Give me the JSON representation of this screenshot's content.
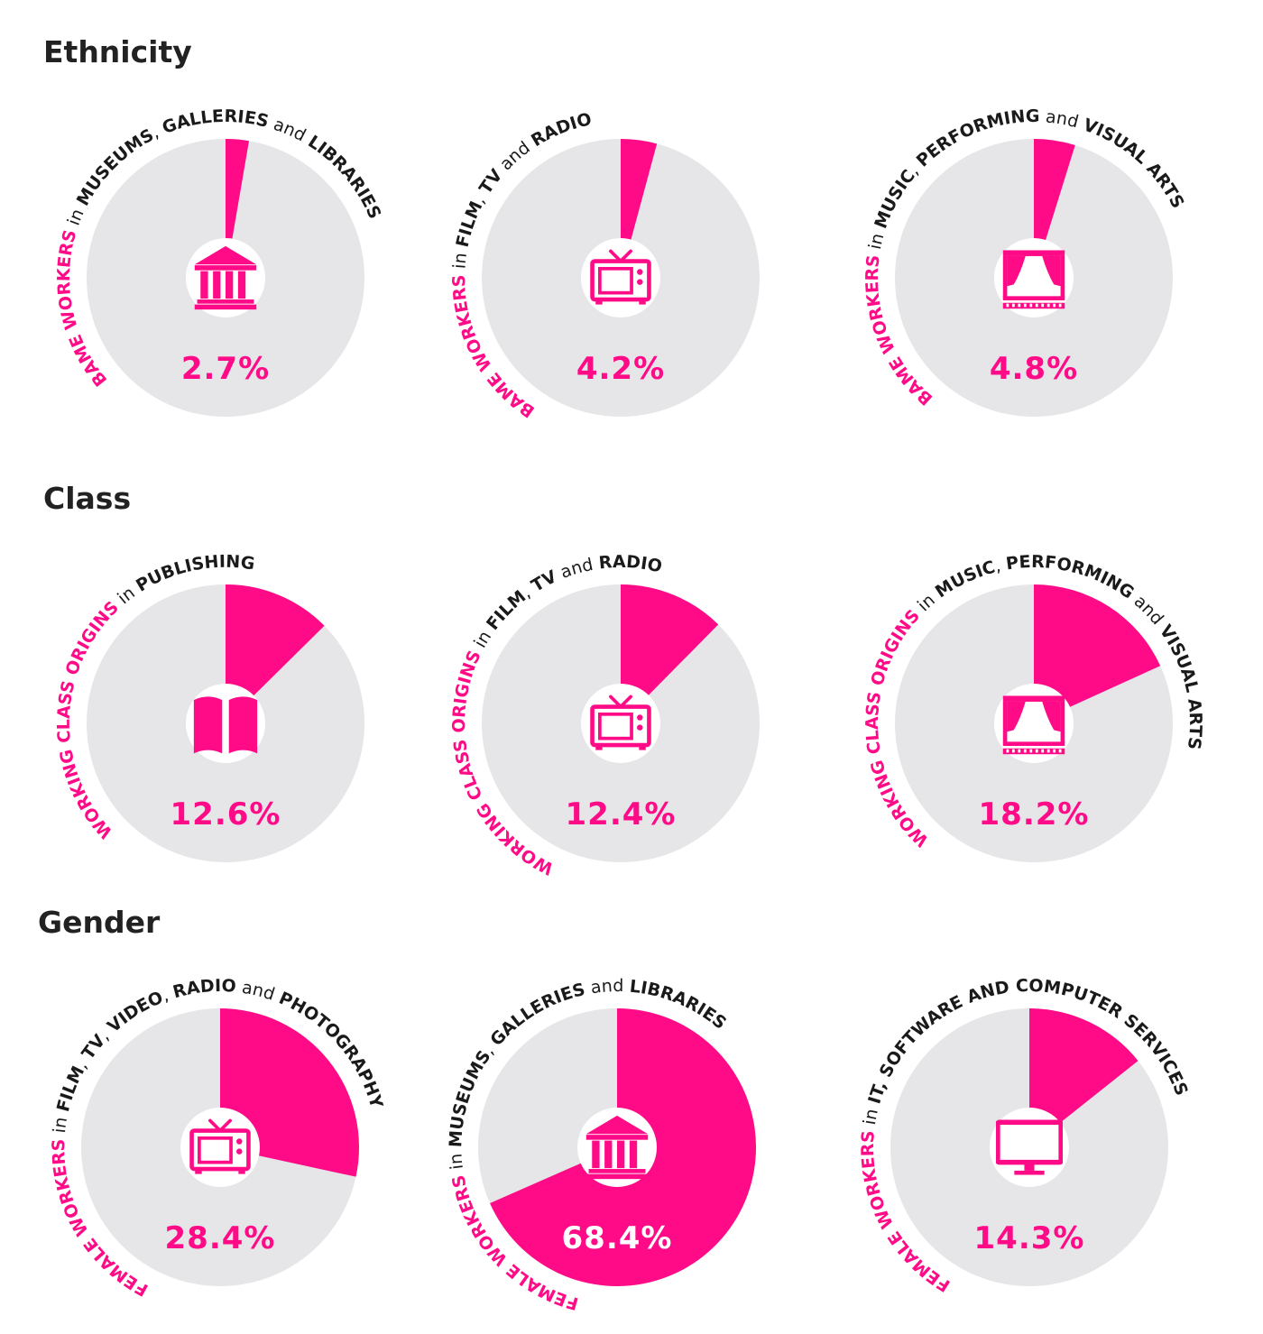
{
  "colors": {
    "accent": "#ff0a87",
    "track": "#e6e5e8",
    "text": "#1a1a1a",
    "white": "#ffffff"
  },
  "sections": [
    {
      "title": "Ethnicity"
    },
    {
      "title": "Class"
    },
    {
      "title": "Gender"
    }
  ],
  "chart_data": [
    {
      "type": "pie",
      "section": "Ethnicity",
      "value": 2.7,
      "label": "2.7%",
      "icon": "museum-icon",
      "caption": [
        {
          "text": "BAME WORKERS",
          "style": "accent"
        },
        {
          "text": " in ",
          "style": "conj"
        },
        {
          "text": "MUSEUMS",
          "style": "bold"
        },
        {
          "text": ", ",
          "style": "conj"
        },
        {
          "text": "GALLERIES",
          "style": "bold"
        },
        {
          "text": " and ",
          "style": "conj"
        },
        {
          "text": "LIBRARIES",
          "style": "bold"
        }
      ]
    },
    {
      "type": "pie",
      "section": "Ethnicity",
      "value": 4.2,
      "label": "4.2%",
      "icon": "tv-icon",
      "caption": [
        {
          "text": "BAME WORKERS",
          "style": "accent"
        },
        {
          "text": " in ",
          "style": "conj"
        },
        {
          "text": "FILM",
          "style": "bold"
        },
        {
          "text": ", ",
          "style": "conj"
        },
        {
          "text": "TV",
          "style": "bold"
        },
        {
          "text": " and ",
          "style": "conj"
        },
        {
          "text": "RADIO",
          "style": "bold"
        }
      ]
    },
    {
      "type": "pie",
      "section": "Ethnicity",
      "value": 4.8,
      "label": "4.8%",
      "icon": "theatre-stage-icon",
      "caption": [
        {
          "text": "BAME WORKERS",
          "style": "accent"
        },
        {
          "text": " in ",
          "style": "conj"
        },
        {
          "text": "MUSIC",
          "style": "bold"
        },
        {
          "text": ", ",
          "style": "conj"
        },
        {
          "text": "PERFORMING",
          "style": "bold"
        },
        {
          "text": " and ",
          "style": "conj"
        },
        {
          "text": "VISUAL ARTS",
          "style": "bold"
        }
      ]
    },
    {
      "type": "pie",
      "section": "Class",
      "value": 12.6,
      "label": "12.6%",
      "icon": "books-icon",
      "caption": [
        {
          "text": "WORKING CLASS ORIGINS",
          "style": "accent"
        },
        {
          "text": " in ",
          "style": "conj"
        },
        {
          "text": "PUBLISHING",
          "style": "bold"
        }
      ]
    },
    {
      "type": "pie",
      "section": "Class",
      "value": 12.4,
      "label": "12.4%",
      "icon": "tv-icon",
      "caption": [
        {
          "text": "WORKING CLASS ORIGINS",
          "style": "accent"
        },
        {
          "text": " in ",
          "style": "conj"
        },
        {
          "text": "FILM",
          "style": "bold"
        },
        {
          "text": ", ",
          "style": "conj"
        },
        {
          "text": "TV",
          "style": "bold"
        },
        {
          "text": " and ",
          "style": "conj"
        },
        {
          "text": "RADIO",
          "style": "bold"
        }
      ]
    },
    {
      "type": "pie",
      "section": "Class",
      "value": 18.2,
      "label": "18.2%",
      "icon": "theatre-stage-icon",
      "caption": [
        {
          "text": "WORKING CLASS ORIGINS",
          "style": "accent"
        },
        {
          "text": " in ",
          "style": "conj"
        },
        {
          "text": "MUSIC",
          "style": "bold"
        },
        {
          "text": ", ",
          "style": "conj"
        },
        {
          "text": "PERFORMING",
          "style": "bold"
        },
        {
          "text": " and ",
          "style": "conj"
        },
        {
          "text": "VISUAL ARTS",
          "style": "bold"
        }
      ]
    },
    {
      "type": "pie",
      "section": "Gender",
      "value": 28.4,
      "label": "28.4%",
      "icon": "tv-icon",
      "caption": [
        {
          "text": "FEMALE WORKERS",
          "style": "accent"
        },
        {
          "text": " in ",
          "style": "conj"
        },
        {
          "text": "FILM",
          "style": "bold"
        },
        {
          "text": ", ",
          "style": "conj"
        },
        {
          "text": "TV",
          "style": "bold"
        },
        {
          "text": ", ",
          "style": "conj"
        },
        {
          "text": "VIDEO",
          "style": "bold"
        },
        {
          "text": ", ",
          "style": "conj"
        },
        {
          "text": "RADIO",
          "style": "bold"
        },
        {
          "text": " and ",
          "style": "conj"
        },
        {
          "text": "PHOTOGRAPHY",
          "style": "bold"
        }
      ]
    },
    {
      "type": "pie",
      "section": "Gender",
      "value": 68.4,
      "label": "68.4%",
      "icon": "museum-icon",
      "caption": [
        {
          "text": "FEMALE WORKERS",
          "style": "accent"
        },
        {
          "text": " in ",
          "style": "conj"
        },
        {
          "text": "MUSEUMS",
          "style": "bold"
        },
        {
          "text": ", ",
          "style": "conj"
        },
        {
          "text": "GALLERIES",
          "style": "bold"
        },
        {
          "text": " and ",
          "style": "conj"
        },
        {
          "text": "LIBRARIES",
          "style": "bold"
        }
      ]
    },
    {
      "type": "pie",
      "section": "Gender",
      "value": 14.3,
      "label": "14.3%",
      "icon": "computer-monitor-icon",
      "caption": [
        {
          "text": "FEMALE WORKERS",
          "style": "accent"
        },
        {
          "text": " in ",
          "style": "conj"
        },
        {
          "text": "IT, SOFTWARE AND COMPUTER SERVICES",
          "style": "bold"
        }
      ]
    }
  ]
}
